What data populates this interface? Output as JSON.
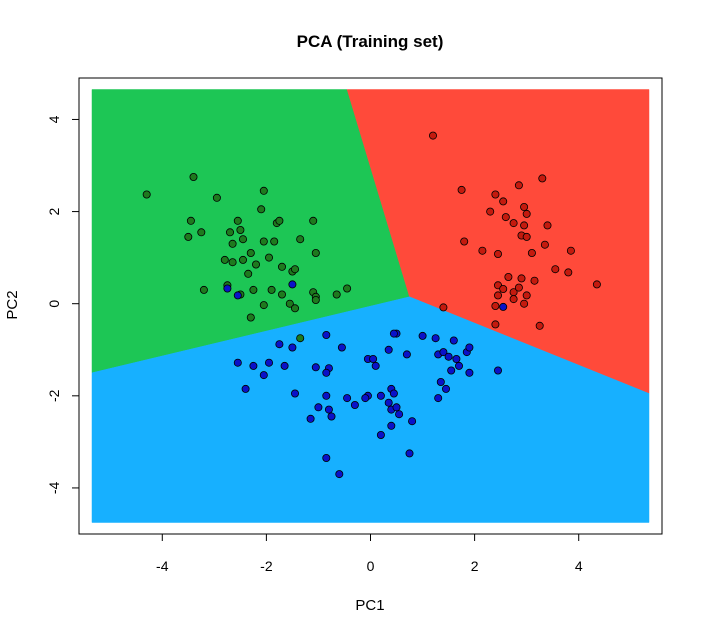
{
  "chart_data": {
    "type": "scatter",
    "title": "PCA (Training set)",
    "xlabel": "PC1",
    "ylabel": "PC2",
    "xlim": [
      -5.6,
      5.6
    ],
    "ylim": [
      -5.0,
      4.9
    ],
    "grid": false,
    "x_ticks": [
      -4,
      -2,
      0,
      2,
      4
    ],
    "y_ticks": [
      -4,
      -2,
      0,
      2,
      4
    ],
    "x_tick_labels": [
      "-4",
      "-2",
      "0",
      "2",
      "4"
    ],
    "y_tick_labels": [
      "-4",
      "-2",
      "0",
      "2",
      "4"
    ],
    "colors": {
      "region_1": "#1DC655",
      "region_2": "#FF4A3A",
      "region_3": "#17B0FF",
      "point_1": "#1E7A1E",
      "point_2": "#C41A0E",
      "point_3": "#0A12C9"
    },
    "regions": [
      {
        "class": 1,
        "color_key": "region_1",
        "polygon": [
          [
            -5.35,
            4.65
          ],
          [
            -0.45,
            4.65
          ],
          [
            0.75,
            0.15
          ],
          [
            -5.35,
            -1.5
          ]
        ]
      },
      {
        "class": 2,
        "color_key": "region_2",
        "polygon": [
          [
            -0.45,
            4.65
          ],
          [
            5.35,
            4.65
          ],
          [
            5.35,
            -1.95
          ],
          [
            0.75,
            0.15
          ]
        ]
      },
      {
        "class": 3,
        "color_key": "region_3",
        "polygon": [
          [
            -5.35,
            -1.5
          ],
          [
            0.75,
            0.15
          ],
          [
            5.35,
            -1.95
          ],
          [
            5.35,
            -4.75
          ],
          [
            -5.35,
            -4.75
          ]
        ]
      }
    ],
    "region_extent": {
      "x": [
        -5.35,
        5.35
      ],
      "y": [
        -4.75,
        4.65
      ]
    },
    "series": [
      {
        "class": 1,
        "color_key": "point_1",
        "points": [
          [
            -4.3,
            2.37
          ],
          [
            -3.4,
            2.75
          ],
          [
            -3.45,
            1.8
          ],
          [
            -3.5,
            1.45
          ],
          [
            -3.25,
            1.55
          ],
          [
            -2.95,
            2.3
          ],
          [
            -2.8,
            0.95
          ],
          [
            -2.65,
            0.9
          ],
          [
            -2.7,
            1.55
          ],
          [
            -2.65,
            1.3
          ],
          [
            -2.5,
            1.6
          ],
          [
            -2.55,
            1.8
          ],
          [
            -2.45,
            1.4
          ],
          [
            -2.45,
            0.95
          ],
          [
            -2.35,
            0.65
          ],
          [
            -2.3,
            1.1
          ],
          [
            -2.2,
            0.85
          ],
          [
            -2.1,
            2.05
          ],
          [
            -2.05,
            2.45
          ],
          [
            -2.05,
            1.35
          ],
          [
            -1.95,
            1.0
          ],
          [
            -1.85,
            1.35
          ],
          [
            -1.8,
            1.75
          ],
          [
            -1.75,
            1.8
          ],
          [
            -1.7,
            0.8
          ],
          [
            -1.5,
            0.7
          ],
          [
            -1.45,
            0.75
          ],
          [
            -1.35,
            1.4
          ],
          [
            -1.1,
            1.8
          ],
          [
            -1.05,
            1.1
          ],
          [
            -1.1,
            0.25
          ],
          [
            -1.05,
            0.15
          ],
          [
            -0.65,
            0.2
          ],
          [
            -0.45,
            0.33
          ],
          [
            -3.2,
            0.3
          ],
          [
            -2.75,
            0.4
          ],
          [
            -2.5,
            0.2
          ],
          [
            -2.3,
            -0.3
          ],
          [
            -2.05,
            -0.03
          ],
          [
            -1.9,
            0.3
          ],
          [
            -1.7,
            0.2
          ],
          [
            -1.55,
            0.0
          ],
          [
            -1.45,
            -0.1
          ],
          [
            -1.35,
            -0.75
          ],
          [
            -2.25,
            0.3
          ],
          [
            -1.05,
            0.08
          ]
        ]
      },
      {
        "class": 2,
        "color_key": "point_2",
        "points": [
          [
            1.2,
            3.65
          ],
          [
            3.3,
            2.72
          ],
          [
            2.85,
            2.57
          ],
          [
            1.75,
            2.47
          ],
          [
            2.4,
            2.37
          ],
          [
            2.55,
            2.22
          ],
          [
            2.3,
            2.0
          ],
          [
            2.95,
            2.1
          ],
          [
            2.6,
            1.88
          ],
          [
            3.0,
            1.95
          ],
          [
            2.95,
            1.7
          ],
          [
            2.75,
            1.75
          ],
          [
            3.4,
            1.7
          ],
          [
            2.9,
            1.48
          ],
          [
            3.0,
            1.45
          ],
          [
            3.35,
            1.28
          ],
          [
            1.8,
            1.35
          ],
          [
            3.1,
            1.1
          ],
          [
            2.15,
            1.15
          ],
          [
            2.45,
            1.08
          ],
          [
            3.85,
            1.15
          ],
          [
            3.55,
            0.75
          ],
          [
            3.8,
            0.68
          ],
          [
            2.65,
            0.58
          ],
          [
            2.9,
            0.55
          ],
          [
            3.15,
            0.5
          ],
          [
            2.45,
            0.4
          ],
          [
            2.55,
            0.32
          ],
          [
            2.75,
            0.25
          ],
          [
            2.85,
            0.35
          ],
          [
            3.0,
            0.18
          ],
          [
            2.95,
            0.0
          ],
          [
            2.75,
            0.1
          ],
          [
            2.45,
            0.18
          ],
          [
            2.4,
            -0.05
          ],
          [
            2.4,
            -0.45
          ],
          [
            3.25,
            -0.48
          ],
          [
            4.35,
            0.42
          ],
          [
            1.4,
            -0.08
          ]
        ]
      },
      {
        "class": 3,
        "color_key": "point_3",
        "points": [
          [
            -2.75,
            0.33
          ],
          [
            -2.55,
            0.18
          ],
          [
            -1.5,
            0.42
          ],
          [
            2.55,
            -0.07
          ],
          [
            -0.85,
            -0.68
          ],
          [
            -1.75,
            -0.88
          ],
          [
            -1.5,
            -0.95
          ],
          [
            -2.25,
            -1.35
          ],
          [
            -1.95,
            -1.28
          ],
          [
            -1.65,
            -1.35
          ],
          [
            -2.55,
            -1.28
          ],
          [
            -2.05,
            -1.55
          ],
          [
            -1.05,
            -1.38
          ],
          [
            -0.8,
            -1.4
          ],
          [
            -0.85,
            -1.5
          ],
          [
            -0.55,
            -0.95
          ],
          [
            -0.05,
            -1.2
          ],
          [
            0.05,
            -1.2
          ],
          [
            0.1,
            -1.35
          ],
          [
            0.35,
            -1.0
          ],
          [
            0.5,
            -0.65
          ],
          [
            0.45,
            -0.65
          ],
          [
            0.7,
            -1.1
          ],
          [
            1.0,
            -0.7
          ],
          [
            1.25,
            -0.75
          ],
          [
            1.3,
            -1.1
          ],
          [
            1.4,
            -1.05
          ],
          [
            1.5,
            -1.15
          ],
          [
            1.6,
            -0.8
          ],
          [
            1.65,
            -1.2
          ],
          [
            1.85,
            -1.05
          ],
          [
            1.9,
            -0.95
          ],
          [
            1.55,
            -1.45
          ],
          [
            1.7,
            -1.35
          ],
          [
            1.35,
            -1.7
          ],
          [
            1.45,
            -1.85
          ],
          [
            1.3,
            -2.05
          ],
          [
            1.9,
            -1.5
          ],
          [
            2.45,
            -1.45
          ],
          [
            -2.4,
            -1.85
          ],
          [
            -1.45,
            -1.95
          ],
          [
            -1.15,
            -2.5
          ],
          [
            -1.0,
            -2.25
          ],
          [
            -0.85,
            -2.0
          ],
          [
            -0.8,
            -2.3
          ],
          [
            -0.75,
            -2.45
          ],
          [
            -0.45,
            -2.05
          ],
          [
            -0.3,
            -2.2
          ],
          [
            -0.05,
            -2.0
          ],
          [
            0.2,
            -2.0
          ],
          [
            0.35,
            -2.15
          ],
          [
            0.4,
            -1.85
          ],
          [
            0.45,
            -1.95
          ],
          [
            0.4,
            -2.3
          ],
          [
            0.5,
            -2.25
          ],
          [
            0.55,
            -2.4
          ],
          [
            0.2,
            -2.85
          ],
          [
            0.8,
            -2.55
          ],
          [
            -0.85,
            -3.35
          ],
          [
            -0.6,
            -3.7
          ],
          [
            0.75,
            -3.25
          ],
          [
            -0.1,
            -2.05
          ],
          [
            0.4,
            -2.65
          ]
        ]
      }
    ]
  }
}
